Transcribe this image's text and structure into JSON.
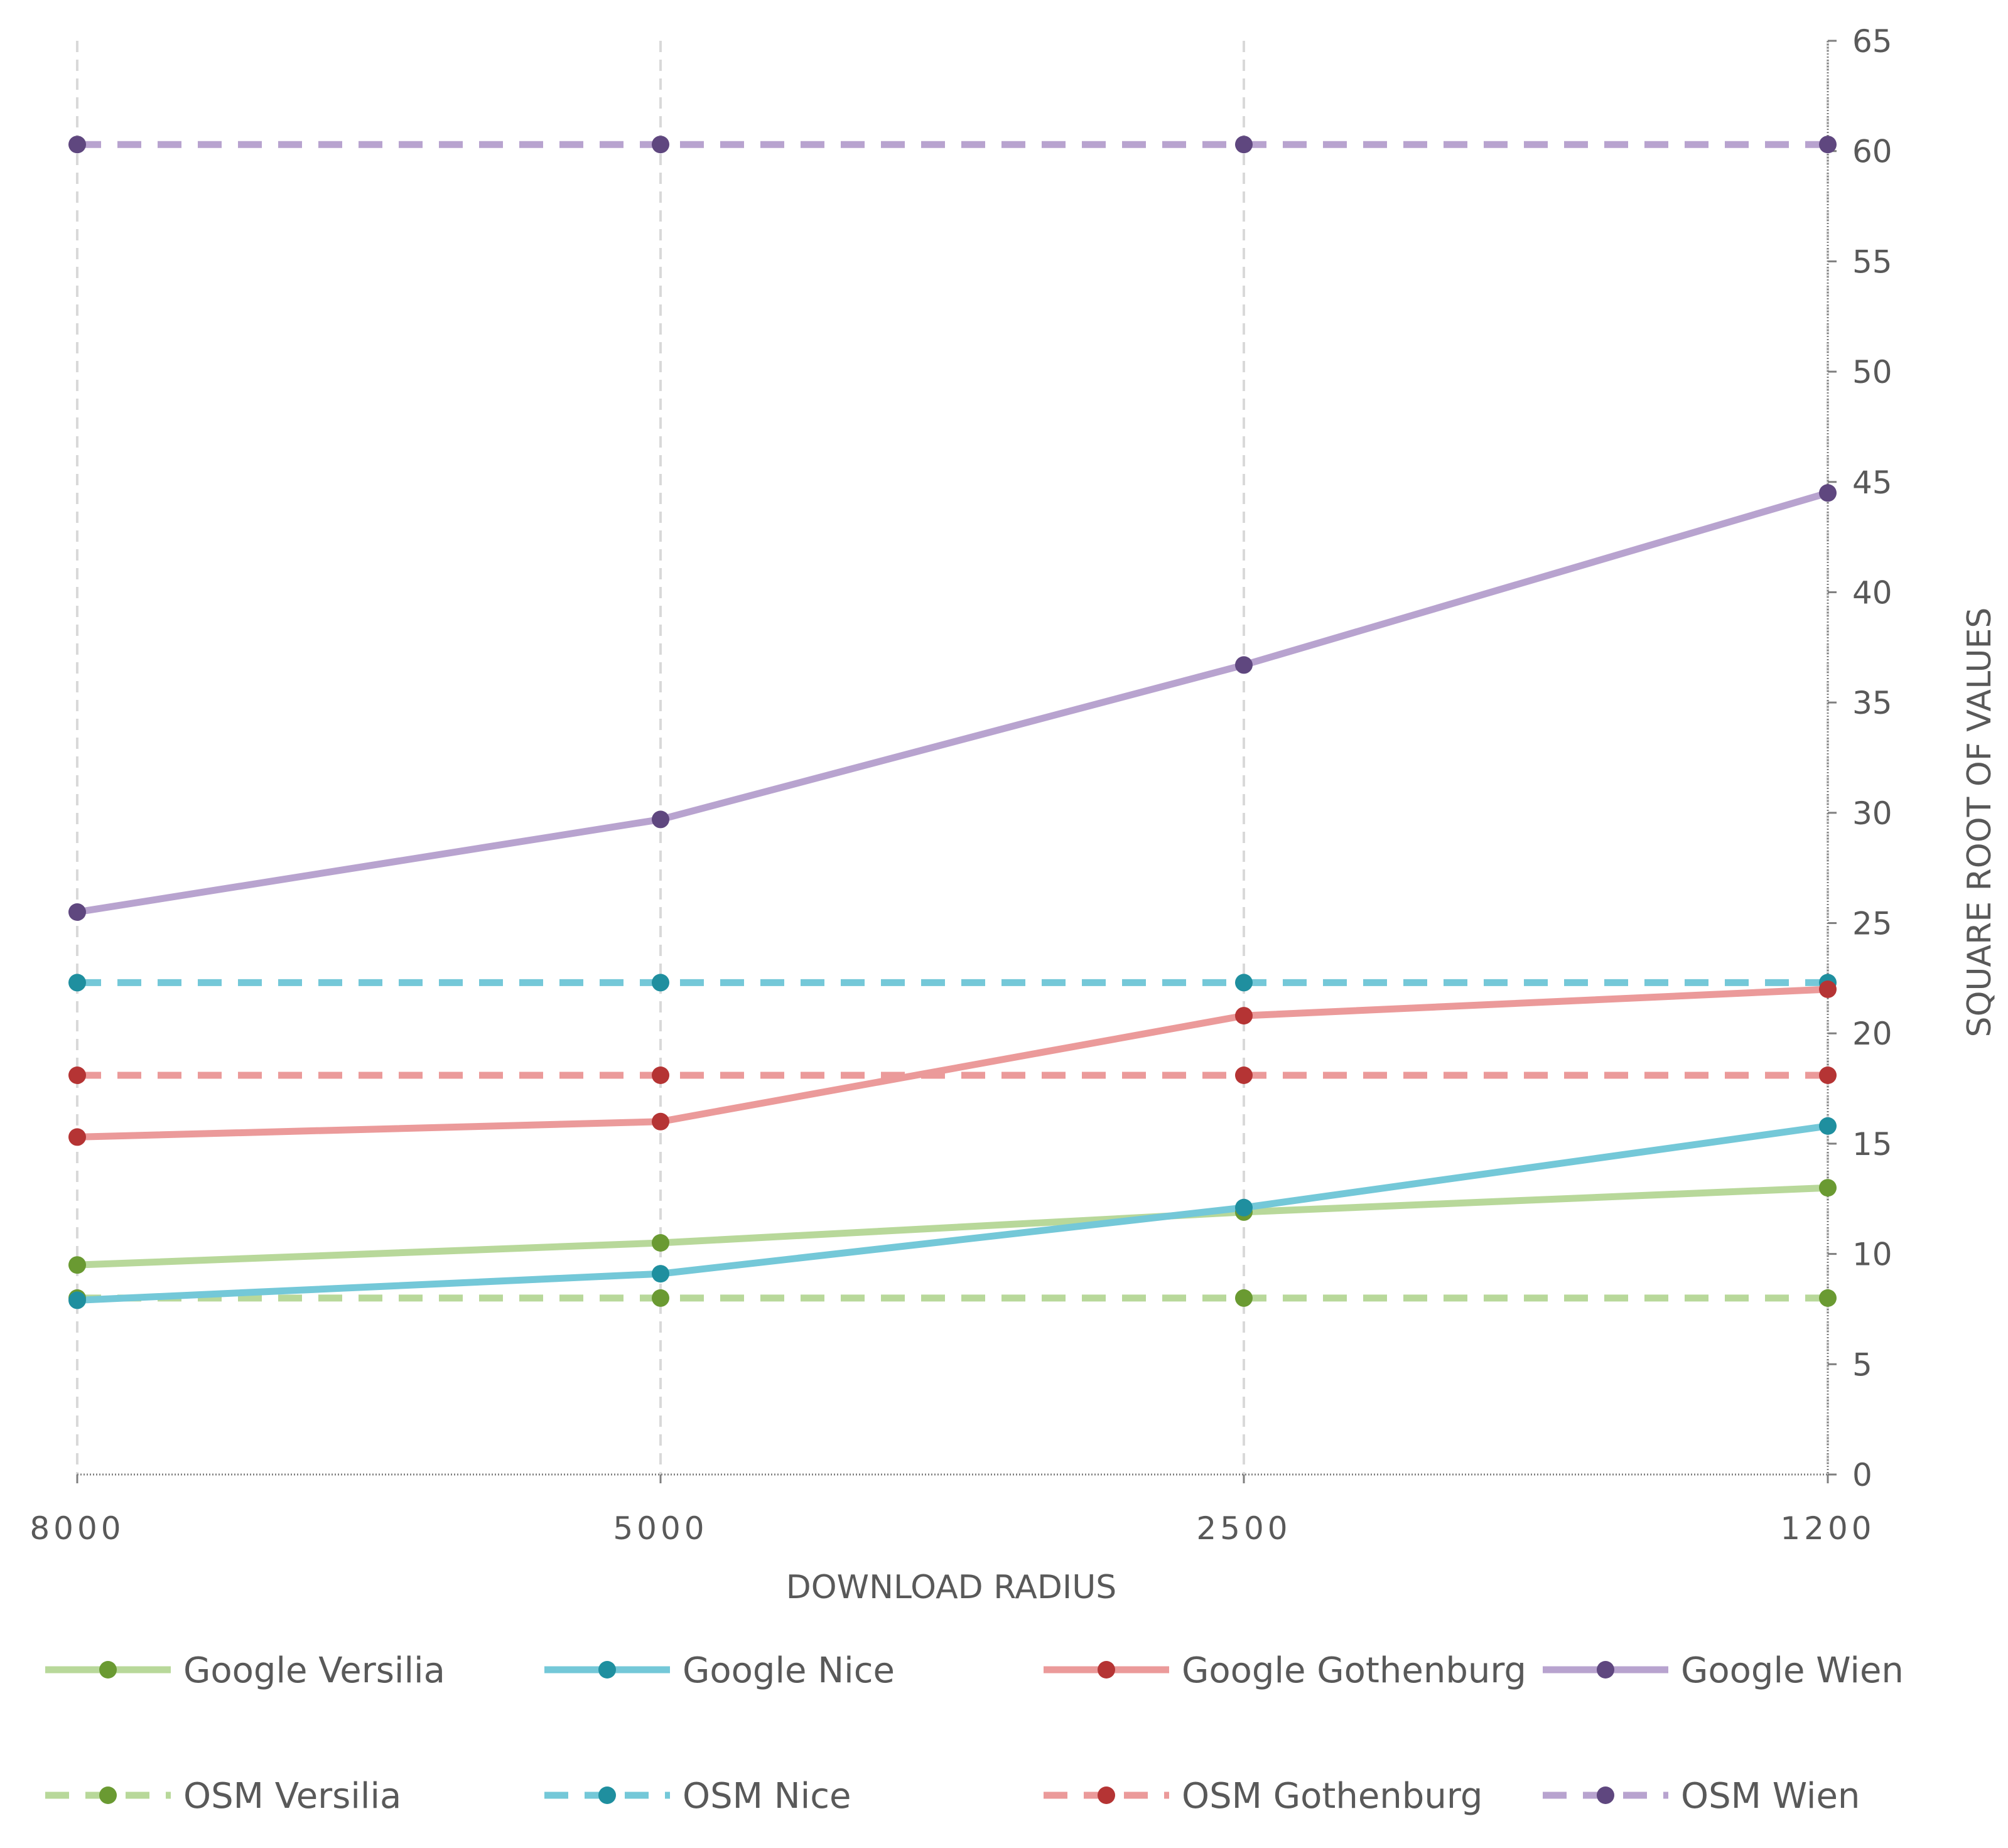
{
  "chart_data": {
    "type": "line",
    "xlabel": "DOWNLOAD RADIUS",
    "ylabel": "SQUARE ROOT OF VALUES",
    "categories": [
      "8000",
      "5000",
      "2500",
      "1200"
    ],
    "ylim": [
      0,
      65
    ],
    "yticks": [
      0,
      5,
      10,
      15,
      20,
      25,
      30,
      35,
      40,
      45,
      50,
      55,
      60,
      65
    ],
    "y_axis_side": "right",
    "grid": "vertical dashed",
    "legend_position": "bottom",
    "series": [
      {
        "name": "Google Versilia",
        "values": [
          9.5,
          10.5,
          11.9,
          13.0
        ],
        "line_color": "#b8d89a",
        "marker_color": "#6a9a32",
        "dashed": false
      },
      {
        "name": "Google Nice",
        "values": [
          7.9,
          9.1,
          12.1,
          15.8
        ],
        "line_color": "#74c8d8",
        "marker_color": "#1f8f9f",
        "dashed": false
      },
      {
        "name": "Google Gothenburg",
        "values": [
          15.3,
          16.0,
          20.8,
          22.0
        ],
        "line_color": "#eb9a9a",
        "marker_color": "#b53434",
        "dashed": false
      },
      {
        "name": "Google Wien",
        "values": [
          25.5,
          29.7,
          36.7,
          44.5
        ],
        "line_color": "#b8a3cf",
        "marker_color": "#5f477f",
        "dashed": false
      },
      {
        "name": "OSM Versilia",
        "values": [
          8.0,
          8.0,
          8.0,
          8.0
        ],
        "line_color": "#b8d89a",
        "marker_color": "#6a9a32",
        "dashed": true
      },
      {
        "name": "OSM Nice",
        "values": [
          22.3,
          22.3,
          22.3,
          22.3
        ],
        "line_color": "#74c8d8",
        "marker_color": "#1f8f9f",
        "dashed": true
      },
      {
        "name": "OSM Gothenburg",
        "values": [
          18.1,
          18.1,
          18.1,
          18.1
        ],
        "line_color": "#eb9a9a",
        "marker_color": "#b53434",
        "dashed": true
      },
      {
        "name": "OSM Wien",
        "values": [
          60.3,
          60.3,
          60.3,
          60.3
        ],
        "line_color": "#b8a3cf",
        "marker_color": "#5f477f",
        "dashed": true
      }
    ]
  }
}
